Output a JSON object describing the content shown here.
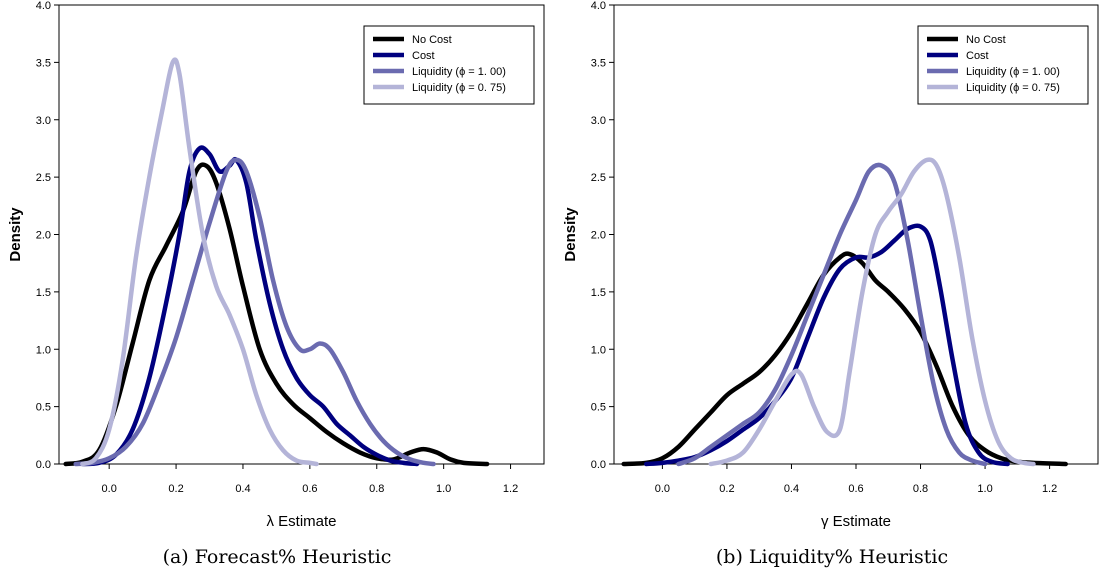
{
  "chart_data": [
    {
      "type": "line",
      "caption": "(a) Forecast% Heuristic",
      "xlabel": "λ Estimate",
      "ylabel": "Density",
      "xlim": [
        -0.15,
        1.3
      ],
      "ylim": [
        0,
        4
      ],
      "xticks": [
        "0.0",
        "0.2",
        "0.4",
        "0.6",
        "0.8",
        "1.0",
        "1.2"
      ],
      "yticks": [
        "0.0",
        "0.5",
        "1.0",
        "1.5",
        "2.0",
        "2.5",
        "3.0",
        "3.5",
        "4.0"
      ],
      "legend_position": "top-right",
      "series": [
        {
          "name": "No Cost",
          "color": "#000000",
          "points": [
            [
              -0.13,
              0
            ],
            [
              -0.08,
              0.02
            ],
            [
              -0.03,
              0.12
            ],
            [
              0.02,
              0.5
            ],
            [
              0.07,
              1.05
            ],
            [
              0.12,
              1.6
            ],
            [
              0.17,
              1.9
            ],
            [
              0.22,
              2.2
            ],
            [
              0.26,
              2.55
            ],
            [
              0.29,
              2.6
            ],
            [
              0.32,
              2.45
            ],
            [
              0.36,
              2.05
            ],
            [
              0.4,
              1.55
            ],
            [
              0.45,
              1.0
            ],
            [
              0.5,
              0.7
            ],
            [
              0.55,
              0.52
            ],
            [
              0.6,
              0.4
            ],
            [
              0.65,
              0.28
            ],
            [
              0.7,
              0.18
            ],
            [
              0.75,
              0.1
            ],
            [
              0.8,
              0.05
            ],
            [
              0.85,
              0.04
            ],
            [
              0.9,
              0.1
            ],
            [
              0.94,
              0.13
            ],
            [
              0.98,
              0.1
            ],
            [
              1.02,
              0.04
            ],
            [
              1.06,
              0.01
            ],
            [
              1.13,
              0
            ]
          ]
        },
        {
          "name": "Cost",
          "color": "#00007f",
          "points": [
            [
              -0.08,
              0
            ],
            [
              -0.03,
              0.01
            ],
            [
              0.02,
              0.08
            ],
            [
              0.07,
              0.3
            ],
            [
              0.12,
              0.75
            ],
            [
              0.17,
              1.4
            ],
            [
              0.21,
              2.0
            ],
            [
              0.24,
              2.55
            ],
            [
              0.27,
              2.75
            ],
            [
              0.3,
              2.7
            ],
            [
              0.33,
              2.55
            ],
            [
              0.36,
              2.6
            ],
            [
              0.38,
              2.65
            ],
            [
              0.41,
              2.45
            ],
            [
              0.44,
              1.95
            ],
            [
              0.48,
              1.4
            ],
            [
              0.52,
              1.0
            ],
            [
              0.56,
              0.75
            ],
            [
              0.6,
              0.6
            ],
            [
              0.64,
              0.5
            ],
            [
              0.68,
              0.35
            ],
            [
              0.72,
              0.25
            ],
            [
              0.76,
              0.15
            ],
            [
              0.8,
              0.08
            ],
            [
              0.84,
              0.03
            ],
            [
              0.88,
              0.01
            ],
            [
              0.92,
              0
            ]
          ]
        },
        {
          "name": "Liquidity (ϕ = 1. 00)",
          "color": "#6b6bb0",
          "points": [
            [
              -0.1,
              0
            ],
            [
              -0.05,
              0.01
            ],
            [
              0.0,
              0.05
            ],
            [
              0.05,
              0.15
            ],
            [
              0.1,
              0.35
            ],
            [
              0.15,
              0.7
            ],
            [
              0.2,
              1.1
            ],
            [
              0.25,
              1.6
            ],
            [
              0.3,
              2.1
            ],
            [
              0.35,
              2.55
            ],
            [
              0.38,
              2.65
            ],
            [
              0.41,
              2.55
            ],
            [
              0.45,
              2.15
            ],
            [
              0.49,
              1.6
            ],
            [
              0.53,
              1.2
            ],
            [
              0.57,
              1.0
            ],
            [
              0.6,
              1.0
            ],
            [
              0.63,
              1.05
            ],
            [
              0.66,
              1.0
            ],
            [
              0.7,
              0.8
            ],
            [
              0.74,
              0.55
            ],
            [
              0.78,
              0.35
            ],
            [
              0.82,
              0.2
            ],
            [
              0.86,
              0.1
            ],
            [
              0.9,
              0.04
            ],
            [
              0.94,
              0.01
            ],
            [
              0.97,
              0
            ]
          ]
        },
        {
          "name": "Liquidity (ϕ = 0. 75)",
          "color": "#b4b4d8",
          "points": [
            [
              -0.08,
              0
            ],
            [
              -0.04,
              0.05
            ],
            [
              0.0,
              0.3
            ],
            [
              0.04,
              0.9
            ],
            [
              0.08,
              1.8
            ],
            [
              0.12,
              2.5
            ],
            [
              0.16,
              3.1
            ],
            [
              0.19,
              3.5
            ],
            [
              0.21,
              3.4
            ],
            [
              0.24,
              2.75
            ],
            [
              0.28,
              2.0
            ],
            [
              0.32,
              1.55
            ],
            [
              0.36,
              1.3
            ],
            [
              0.4,
              1.0
            ],
            [
              0.44,
              0.6
            ],
            [
              0.48,
              0.3
            ],
            [
              0.52,
              0.12
            ],
            [
              0.56,
              0.03
            ],
            [
              0.6,
              0.01
            ],
            [
              0.62,
              0
            ]
          ]
        }
      ]
    },
    {
      "type": "line",
      "caption": "(b) Liquidity% Heuristic",
      "xlabel": "γ Estimate",
      "ylabel": "Density",
      "xlim": [
        -0.15,
        1.35
      ],
      "ylim": [
        0,
        4
      ],
      "xticks": [
        "0.0",
        "0.2",
        "0.4",
        "0.6",
        "0.8",
        "1.0",
        "1.2"
      ],
      "yticks": [
        "0.0",
        "0.5",
        "1.0",
        "1.5",
        "2.0",
        "2.5",
        "3.0",
        "3.5",
        "4.0"
      ],
      "legend_position": "top-right",
      "series": [
        {
          "name": "No Cost",
          "color": "#000000",
          "points": [
            [
              -0.12,
              0
            ],
            [
              -0.05,
              0.01
            ],
            [
              0.0,
              0.05
            ],
            [
              0.05,
              0.15
            ],
            [
              0.1,
              0.3
            ],
            [
              0.15,
              0.45
            ],
            [
              0.2,
              0.6
            ],
            [
              0.25,
              0.7
            ],
            [
              0.3,
              0.8
            ],
            [
              0.35,
              0.95
            ],
            [
              0.4,
              1.15
            ],
            [
              0.45,
              1.4
            ],
            [
              0.5,
              1.65
            ],
            [
              0.55,
              1.8
            ],
            [
              0.58,
              1.83
            ],
            [
              0.62,
              1.75
            ],
            [
              0.66,
              1.6
            ],
            [
              0.7,
              1.5
            ],
            [
              0.75,
              1.35
            ],
            [
              0.8,
              1.15
            ],
            [
              0.85,
              0.85
            ],
            [
              0.9,
              0.5
            ],
            [
              0.95,
              0.25
            ],
            [
              1.0,
              0.12
            ],
            [
              1.05,
              0.05
            ],
            [
              1.1,
              0.02
            ],
            [
              1.15,
              0.01
            ],
            [
              1.25,
              0
            ]
          ]
        },
        {
          "name": "Cost",
          "color": "#00007f",
          "points": [
            [
              -0.05,
              0
            ],
            [
              0.0,
              0.01
            ],
            [
              0.05,
              0.03
            ],
            [
              0.1,
              0.06
            ],
            [
              0.15,
              0.12
            ],
            [
              0.2,
              0.2
            ],
            [
              0.25,
              0.3
            ],
            [
              0.3,
              0.4
            ],
            [
              0.35,
              0.55
            ],
            [
              0.4,
              0.75
            ],
            [
              0.45,
              1.1
            ],
            [
              0.5,
              1.45
            ],
            [
              0.55,
              1.7
            ],
            [
              0.6,
              1.8
            ],
            [
              0.64,
              1.8
            ],
            [
              0.68,
              1.85
            ],
            [
              0.72,
              1.95
            ],
            [
              0.76,
              2.05
            ],
            [
              0.8,
              2.07
            ],
            [
              0.83,
              1.95
            ],
            [
              0.86,
              1.55
            ],
            [
              0.9,
              0.9
            ],
            [
              0.94,
              0.35
            ],
            [
              0.98,
              0.1
            ],
            [
              1.02,
              0.02
            ],
            [
              1.07,
              0
            ]
          ]
        },
        {
          "name": "Liquidity (ϕ = 1. 00)",
          "color": "#6b6bb0",
          "points": [
            [
              0.05,
              0
            ],
            [
              0.1,
              0.05
            ],
            [
              0.15,
              0.15
            ],
            [
              0.2,
              0.25
            ],
            [
              0.25,
              0.35
            ],
            [
              0.3,
              0.45
            ],
            [
              0.35,
              0.65
            ],
            [
              0.4,
              0.95
            ],
            [
              0.45,
              1.3
            ],
            [
              0.5,
              1.65
            ],
            [
              0.55,
              2.0
            ],
            [
              0.6,
              2.3
            ],
            [
              0.64,
              2.55
            ],
            [
              0.68,
              2.6
            ],
            [
              0.72,
              2.45
            ],
            [
              0.76,
              1.95
            ],
            [
              0.8,
              1.3
            ],
            [
              0.84,
              0.7
            ],
            [
              0.88,
              0.3
            ],
            [
              0.92,
              0.1
            ],
            [
              0.96,
              0.03
            ],
            [
              1.0,
              0
            ]
          ]
        },
        {
          "name": "Liquidity (ϕ = 0. 75)",
          "color": "#b4b4d8",
          "points": [
            [
              0.15,
              0
            ],
            [
              0.2,
              0.03
            ],
            [
              0.25,
              0.1
            ],
            [
              0.3,
              0.3
            ],
            [
              0.35,
              0.55
            ],
            [
              0.4,
              0.78
            ],
            [
              0.43,
              0.78
            ],
            [
              0.47,
              0.5
            ],
            [
              0.51,
              0.28
            ],
            [
              0.55,
              0.3
            ],
            [
              0.58,
              0.8
            ],
            [
              0.62,
              1.5
            ],
            [
              0.66,
              2.0
            ],
            [
              0.7,
              2.2
            ],
            [
              0.74,
              2.35
            ],
            [
              0.78,
              2.55
            ],
            [
              0.82,
              2.65
            ],
            [
              0.85,
              2.6
            ],
            [
              0.88,
              2.35
            ],
            [
              0.92,
              1.8
            ],
            [
              0.96,
              1.1
            ],
            [
              1.0,
              0.55
            ],
            [
              1.04,
              0.2
            ],
            [
              1.08,
              0.05
            ],
            [
              1.12,
              0.01
            ],
            [
              1.15,
              0
            ]
          ]
        }
      ]
    }
  ]
}
